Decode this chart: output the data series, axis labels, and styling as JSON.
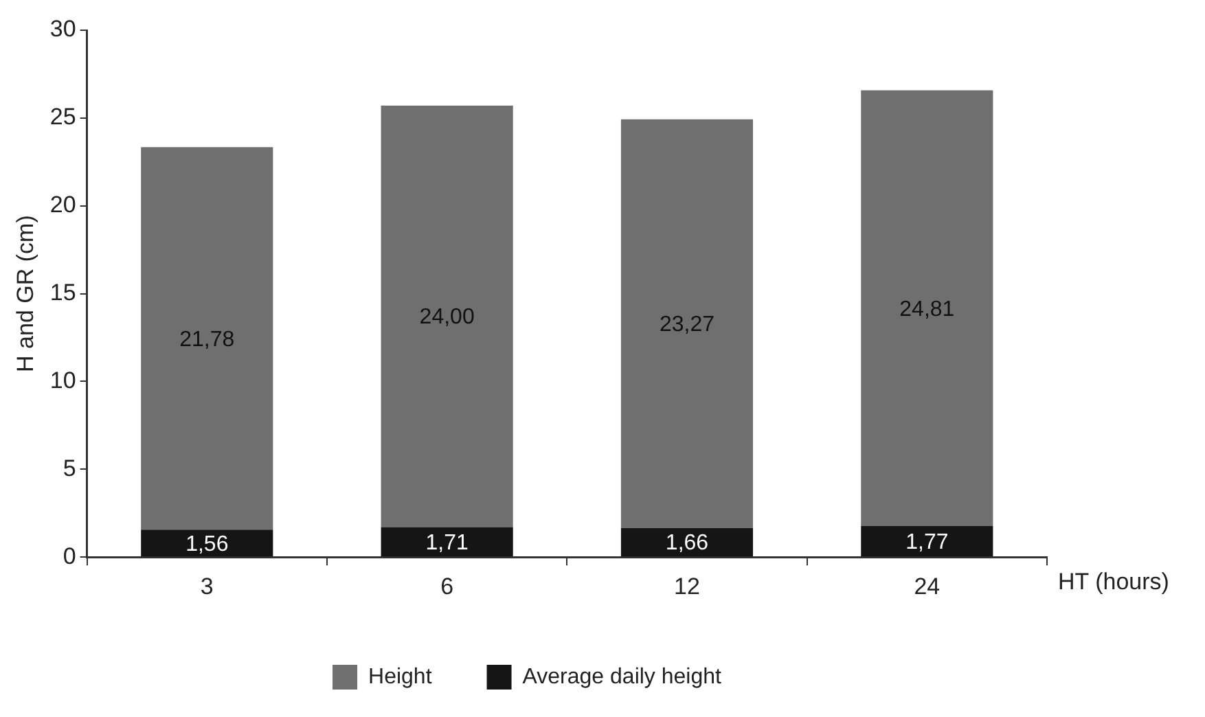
{
  "chart_data": {
    "type": "bar",
    "stacked": true,
    "xlabel": "HT (hours)",
    "ylabel": "H and GR (cm)",
    "categories": [
      "3",
      "6",
      "12",
      "24"
    ],
    "series": [
      {
        "name": "Average daily height",
        "color": "#151515",
        "values": [
          1.56,
          1.71,
          1.66,
          1.77
        ],
        "value_labels": [
          "1,56",
          "1,71",
          "1,66",
          "1,77"
        ]
      },
      {
        "name": "Height",
        "color": "#6f6f6f",
        "values": [
          21.78,
          24.0,
          23.27,
          24.81
        ],
        "value_labels": [
          "21,78",
          "24,00",
          "23,27",
          "24,81"
        ]
      }
    ],
    "ylim": [
      0,
      30
    ],
    "yticks": [
      0,
      5,
      10,
      15,
      20,
      25,
      30
    ],
    "grid": false,
    "legend": "bottom"
  }
}
